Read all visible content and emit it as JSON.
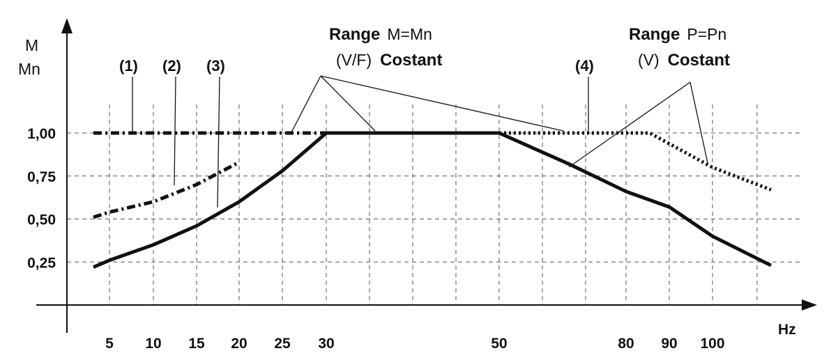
{
  "chart_data": {
    "type": "line",
    "ylabel_line1": "M",
    "ylabel_line2": "Mn",
    "xlabel": "Hz",
    "x_ticks": [
      "5",
      "10",
      "15",
      "20",
      "25",
      "30",
      "50",
      "80",
      "90",
      "100"
    ],
    "y_ticks": [
      "0,25",
      "0,50",
      "0,75",
      "1,00"
    ],
    "y_tick_values": [
      0.25,
      0.5,
      0.75,
      1.0
    ],
    "series": [
      {
        "name": "(1)",
        "style": "dash-dot",
        "points": [
          [
            "3",
            1.0
          ],
          [
            "30",
            1.0
          ]
        ]
      },
      {
        "name": "(2)",
        "style": "dash-dot",
        "points": [
          [
            "3",
            0.51
          ],
          [
            "5",
            0.54
          ],
          [
            "10",
            0.6
          ],
          [
            "15",
            0.7
          ],
          [
            "20",
            0.83
          ],
          [
            "24",
            0.99
          ],
          [
            "25",
            1.0
          ],
          [
            "30",
            1.0
          ]
        ]
      },
      {
        "name": "(3)",
        "style": "solid",
        "points": [
          [
            "3",
            0.22
          ],
          [
            "5",
            0.26
          ],
          [
            "10",
            0.35
          ],
          [
            "15",
            0.46
          ],
          [
            "20",
            0.6
          ],
          [
            "25",
            0.78
          ],
          [
            "30",
            1.0
          ],
          [
            "50",
            1.0
          ],
          [
            "65",
            0.82
          ],
          [
            "80",
            0.66
          ],
          [
            "90",
            0.57
          ],
          [
            "100",
            0.4
          ],
          [
            "110",
            0.23
          ]
        ]
      },
      {
        "name": "(4)",
        "style": "dotted",
        "points": [
          [
            "50",
            1.0
          ],
          [
            "65",
            1.0
          ],
          [
            "85",
            1.0
          ],
          [
            "100",
            0.8
          ],
          [
            "110",
            0.67
          ]
        ]
      }
    ],
    "annotations": {
      "range1": {
        "bold": "Range",
        "normal": "M=Mn",
        "line2_normal": "(V/F)",
        "line2_bold": "Costant"
      },
      "range2": {
        "bold": "Range",
        "normal": "P=Pn",
        "line2_normal": "(V)",
        "line2_bold": "Costant"
      }
    }
  }
}
